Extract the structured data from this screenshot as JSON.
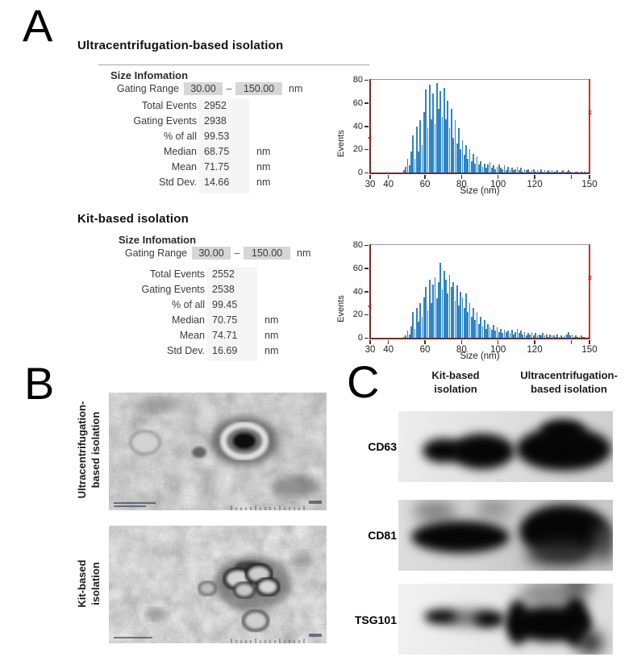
{
  "panel_a": {
    "label": "A",
    "sections": [
      {
        "heading": "Ultracentrifugation-based isolation",
        "table": {
          "title": "Size Infomation",
          "gating_label": "Gating Range",
          "gating_min": "30.00",
          "gating_sep": "–",
          "gating_max": "150.00",
          "gating_unit": "nm",
          "rows": [
            {
              "label": "Total  Events",
              "value": "2952",
              "unit": ""
            },
            {
              "label": "Gating Events",
              "value": "2938",
              "unit": ""
            },
            {
              "label": "% of all",
              "value": "99.53",
              "unit": ""
            },
            {
              "label": "Median",
              "value": "68.75",
              "unit": "nm"
            },
            {
              "label": "Mean",
              "value": "71.75",
              "unit": "nm"
            },
            {
              "label": "Std Dev.",
              "value": "14.66",
              "unit": "nm"
            }
          ]
        }
      },
      {
        "heading": "Kit-based isolation",
        "table": {
          "title": "Size Infomation",
          "gating_label": "Gating Range",
          "gating_min": "30.00",
          "gating_sep": "–",
          "gating_max": "150.00",
          "gating_unit": "nm",
          "rows": [
            {
              "label": "Total  Events",
              "value": "2552",
              "unit": ""
            },
            {
              "label": "Gating Events",
              "value": "2538",
              "unit": ""
            },
            {
              "label": "% of all",
              "value": "99.45",
              "unit": ""
            },
            {
              "label": "Median",
              "value": "70.75",
              "unit": "nm"
            },
            {
              "label": "Mean",
              "value": "74.71",
              "unit": "nm"
            },
            {
              "label": "Std Dev.",
              "value": "16.69",
              "unit": "nm"
            }
          ]
        }
      }
    ]
  },
  "panel_b": {
    "label": "B",
    "images": [
      {
        "caption_line1": "Ultracentrifugation-",
        "caption_line2": "based isolation"
      },
      {
        "caption_line1": "Kit-based",
        "caption_line2": "isolation"
      }
    ]
  },
  "panel_c": {
    "label": "C",
    "col_headers": [
      {
        "line1": "Kit-based",
        "line2": "isolation"
      },
      {
        "line1": "Ultracentrifugation-",
        "line2": "based isolation"
      }
    ],
    "row_labels": [
      "CD63",
      "CD81",
      "TSG101"
    ]
  },
  "chart_data": [
    {
      "type": "bar",
      "title": "Ultracentrifugation-based isolation particle size histogram",
      "xlabel": "Size (nm)",
      "ylabel": "Events",
      "xlim": [
        30,
        150
      ],
      "ylim": [
        0,
        80
      ],
      "x_ticks": [
        30,
        40,
        60,
        80,
        100,
        120,
        150
      ],
      "x_minor_ticks": [
        140
      ],
      "y_ticks": [
        0,
        20,
        40,
        60,
        80
      ],
      "bar_color": "#2d86c4",
      "gate_color": "#7b2a21",
      "bin_start": 45,
      "bin_width": 1,
      "values": [
        0,
        0,
        0,
        2,
        5,
        12,
        6,
        18,
        32,
        12,
        40,
        18,
        45,
        24,
        52,
        72,
        38,
        76,
        46,
        68,
        42,
        77,
        55,
        70,
        48,
        73,
        46,
        62,
        38,
        55,
        30,
        45,
        25,
        38,
        20,
        28,
        15,
        24,
        12,
        20,
        10,
        16,
        8,
        14,
        7,
        10,
        5,
        8,
        4,
        7,
        9,
        4,
        6,
        3,
        5,
        7,
        4,
        3,
        6,
        2,
        5,
        3,
        4,
        2,
        3,
        5,
        2,
        4,
        1,
        3,
        2,
        3,
        1,
        2,
        3,
        1,
        2,
        1,
        3,
        1,
        2,
        1,
        2,
        1,
        2,
        1,
        1,
        2,
        1,
        1,
        2,
        1,
        1,
        2,
        1,
        1,
        0,
        1,
        1,
        0,
        1,
        0,
        1,
        0,
        1
      ],
      "markers": {
        "left": {
          "x": 30,
          "y": 30,
          "glyph": "<"
        },
        "right": {
          "x": 150,
          "y": 52,
          "glyph": "x"
        }
      }
    },
    {
      "type": "bar",
      "title": "Kit-based isolation particle size histogram",
      "xlabel": "Size (nm)",
      "ylabel": "Events",
      "xlim": [
        30,
        150
      ],
      "ylim": [
        0,
        80
      ],
      "x_ticks": [
        30,
        40,
        60,
        80,
        100,
        120,
        150
      ],
      "x_minor_ticks": [
        140
      ],
      "y_ticks": [
        0,
        20,
        40,
        60,
        80
      ],
      "bar_color": "#2d86c4",
      "gate_color": "#7b2a21",
      "bin_start": 45,
      "bin_width": 1,
      "values": [
        0,
        0,
        0,
        1,
        2,
        6,
        3,
        10,
        22,
        8,
        26,
        14,
        30,
        18,
        35,
        44,
        24,
        50,
        30,
        46,
        52,
        34,
        48,
        65,
        42,
        58,
        50,
        38,
        54,
        44,
        48,
        32,
        45,
        28,
        40,
        35,
        26,
        38,
        22,
        30,
        18,
        26,
        15,
        22,
        12,
        18,
        10,
        15,
        8,
        12,
        9,
        7,
        11,
        6,
        9,
        5,
        8,
        4,
        7,
        5,
        6,
        4,
        7,
        3,
        5,
        8,
        4,
        6,
        3,
        5,
        2,
        4,
        3,
        5,
        2,
        4,
        2,
        3,
        2,
        4,
        2,
        3,
        1,
        3,
        2,
        2,
        1,
        3,
        1,
        2,
        1,
        2,
        3,
        5,
        2,
        3,
        1,
        2,
        1,
        1,
        2,
        1,
        1,
        0,
        1
      ],
      "markers": {
        "left": {
          "x": 30,
          "y": 27,
          "glyph": "<"
        },
        "right": {
          "x": 150,
          "y": 52,
          "glyph": "x"
        }
      }
    }
  ]
}
